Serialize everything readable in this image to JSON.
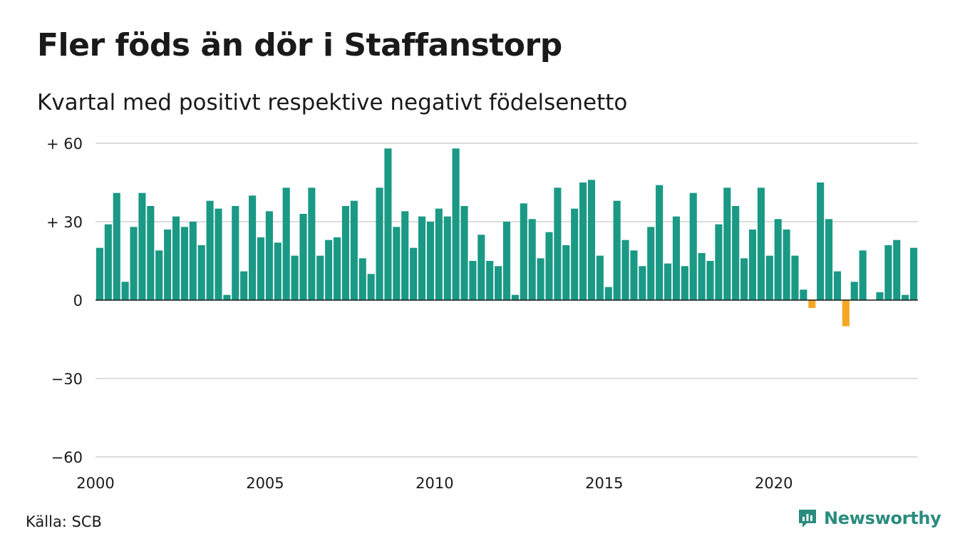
{
  "title": "Fler föds än dör i Staffanstorp",
  "subtitle": "Kvartal med positivt respektive negativt födelsenetto",
  "source": "Källa: SCB",
  "brand": {
    "name": "Newsworthy",
    "icon": "newsworthy-logo-icon"
  },
  "colors": {
    "positive": "#1a9985",
    "negative": "#f5a623",
    "grid": "#dddddd",
    "zero_line": "#1a1a1a",
    "brand": "#2a8c7e"
  },
  "chart_data": {
    "type": "bar",
    "x_start": "2000 Q1",
    "x_label_years": [
      "2000",
      "2005",
      "2010",
      "2015",
      "2020"
    ],
    "ylim": [
      -60,
      60
    ],
    "y_ticks": [
      60,
      30,
      0,
      -30,
      -60
    ],
    "y_tick_labels": [
      "+ 60",
      "+ 30",
      "0",
      "−30",
      "−60"
    ],
    "grid": true,
    "values": [
      20,
      29,
      41,
      7,
      28,
      41,
      36,
      19,
      27,
      32,
      28,
      30,
      21,
      38,
      35,
      2,
      36,
      11,
      40,
      24,
      34,
      22,
      43,
      17,
      33,
      43,
      17,
      23,
      24,
      36,
      38,
      16,
      10,
      43,
      58,
      28,
      34,
      20,
      32,
      30,
      35,
      32,
      58,
      36,
      15,
      25,
      15,
      13,
      30,
      2,
      37,
      31,
      16,
      26,
      43,
      21,
      35,
      45,
      46,
      17,
      5,
      38,
      23,
      19,
      13,
      28,
      44,
      14,
      32,
      13,
      41,
      18,
      15,
      29,
      43,
      36,
      16,
      27,
      43,
      17,
      31,
      27,
      17,
      4,
      -3,
      45,
      31,
      11,
      -10,
      7,
      19,
      0,
      3,
      21,
      23,
      2,
      20
    ]
  }
}
